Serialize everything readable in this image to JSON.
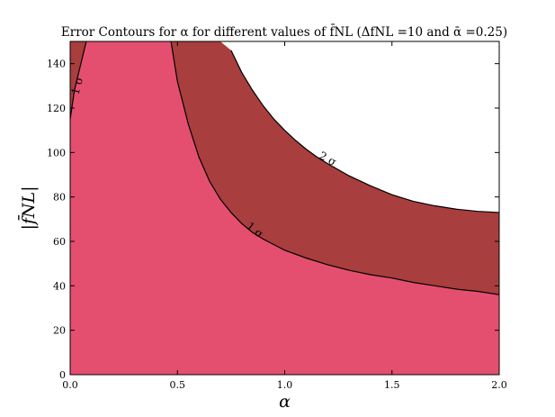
{
  "chart_data": {
    "type": "area",
    "title": "Error Contours for α for different values of f̄NL (ΔfNL =10 and ᾱ =0.25)",
    "xlabel": "α",
    "ylabel": "|f̄NL|",
    "xlim": [
      0.0,
      2.0
    ],
    "ylim": [
      0,
      150
    ],
    "xticks": [
      0.0,
      0.5,
      1.0,
      1.5,
      2.0
    ],
    "xtick_labels": [
      "0.0",
      "0.5",
      "1.0",
      "1.5",
      "2.0"
    ],
    "yticks": [
      0,
      20,
      40,
      60,
      80,
      100,
      120,
      140
    ],
    "ytick_labels": [
      "0",
      "20",
      "40",
      "60",
      "80",
      "100",
      "120",
      "140"
    ],
    "grid": false,
    "regions": [
      {
        "name": "",
        "color": "#e44f6f"
      },
      {
        "name": "",
        "color": "#a83e3e"
      }
    ],
    "contours": [
      {
        "label": "1 σ",
        "level": 1,
        "left_branch": {
          "x": [
            0.0,
            0.02,
            0.04,
            0.06,
            0.075
          ],
          "y": [
            115,
            128,
            136,
            144,
            150
          ]
        },
        "right_branch": {
          "x": [
            0.47,
            0.5,
            0.55,
            0.6,
            0.65,
            0.7,
            0.75,
            0.8,
            0.85,
            0.9,
            1.0,
            1.1,
            1.2,
            1.3,
            1.4,
            1.5,
            1.6,
            1.7,
            1.8,
            1.9,
            2.0
          ],
          "y": [
            150,
            132,
            113,
            98,
            87,
            79,
            73,
            68,
            64,
            61,
            56,
            52.5,
            49.5,
            47,
            45,
            43.5,
            41.5,
            40,
            38.5,
            37.5,
            36
          ]
        },
        "label_positions": [
          {
            "x": 0.035,
            "y": 130,
            "angle": -75
          },
          {
            "x": 0.86,
            "y": 65,
            "angle": 38
          }
        ]
      },
      {
        "label": "2 σ",
        "level": 2,
        "right_branch": {
          "x": [
            0.96,
            1.0,
            1.05,
            1.1,
            1.15,
            1.2,
            1.3,
            1.4,
            1.5,
            1.6,
            1.7,
            1.8,
            1.9,
            2.0
          ],
          "y": [
            150,
            141,
            132,
            124,
            117,
            112,
            102,
            95,
            89,
            84.5,
            80.5,
            77.5,
            75,
            73
          ],
          "x_upper_start": [
            0.47,
            0.5,
            0.55,
            0.6,
            0.65,
            0.7,
            0.8,
            0.9,
            0.96
          ],
          "y_upper_start": [
            150,
            150,
            150,
            150,
            150,
            150,
            150,
            150,
            150
          ]
        },
        "curve": {
          "x": [
            0.47,
            0.5,
            0.55,
            0.6,
            0.65,
            0.7,
            0.75,
            0.8,
            0.85,
            0.9,
            0.95,
            1.0,
            1.05,
            1.1,
            1.15,
            1.2,
            1.3,
            1.4,
            1.5,
            1.6,
            1.7,
            1.8,
            1.9,
            2.0
          ],
          "y": [
            150,
            150,
            150,
            150,
            150,
            150,
            146,
            136,
            128,
            121,
            115,
            110,
            105.5,
            101.5,
            98,
            95,
            89.5,
            85,
            81,
            78,
            76,
            74.5,
            73.5,
            73
          ]
        },
        "label_positions": [
          {
            "x": 1.2,
            "y": 97,
            "angle": 28
          }
        ]
      }
    ]
  }
}
